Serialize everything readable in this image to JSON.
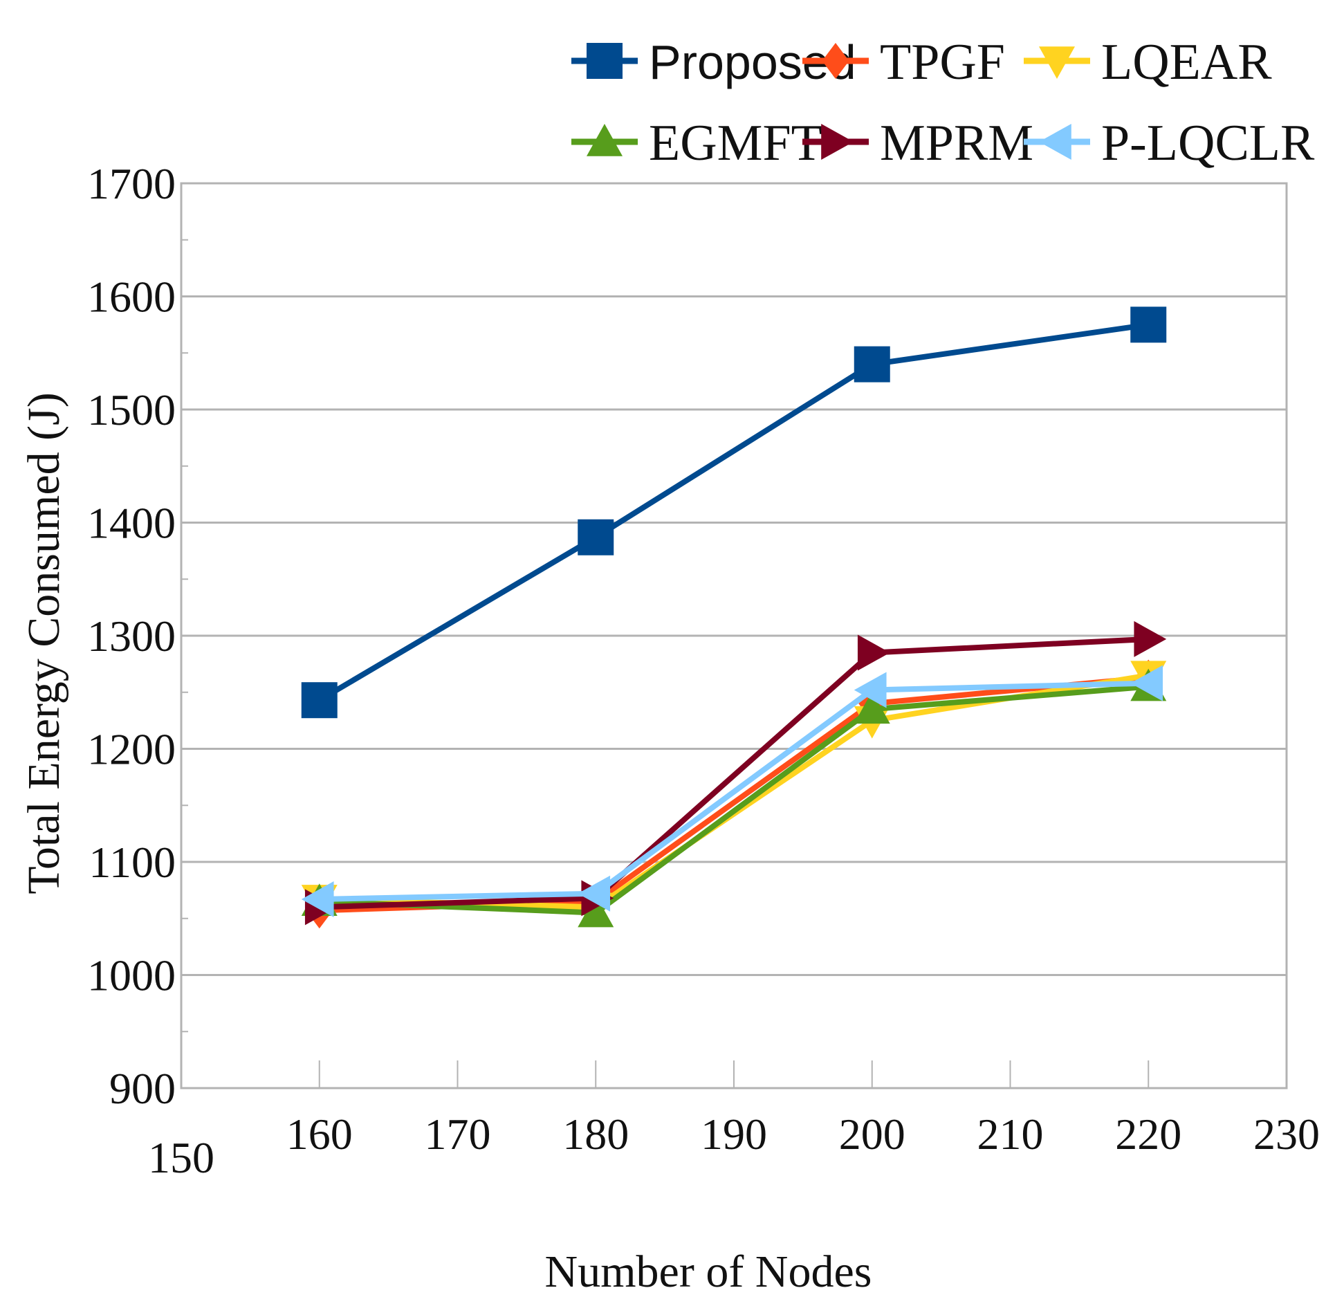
{
  "chart_data": {
    "type": "line",
    "title": "",
    "xlabel": "Number of Nodes",
    "ylabel": "Total Energy Consumed (J)",
    "xlim": [
      150,
      230
    ],
    "ylim": [
      900,
      1700
    ],
    "xticks": [
      150,
      160,
      170,
      180,
      190,
      200,
      210,
      220,
      230
    ],
    "yticks": [
      900,
      1000,
      1100,
      1200,
      1300,
      1400,
      1500,
      1600,
      1700
    ],
    "x": [
      160,
      180,
      200,
      220
    ],
    "grid": "horizontal",
    "legend_position": "top",
    "series": [
      {
        "name": "Proposed",
        "values": [
          1243,
          1387,
          1540,
          1575
        ],
        "color": "#004a8f",
        "marker": "square"
      },
      {
        "name": "TPGF",
        "values": [
          1057,
          1065,
          1240,
          1263
        ],
        "color": "#ff4d1a",
        "marker": "diamond"
      },
      {
        "name": "LQEAR",
        "values": [
          1067,
          1060,
          1225,
          1265
        ],
        "color": "#ffd320",
        "marker": "triangle-down"
      },
      {
        "name": "EGMFT",
        "values": [
          1065,
          1055,
          1235,
          1255
        ],
        "color": "#579d1c",
        "marker": "triangle-up"
      },
      {
        "name": "MPRM",
        "values": [
          1060,
          1068,
          1285,
          1297
        ],
        "color": "#7e0021",
        "marker": "triangle-right"
      },
      {
        "name": "P-LQCLR",
        "values": [
          1067,
          1072,
          1252,
          1258
        ],
        "color": "#83caff",
        "marker": "triangle-left"
      }
    ]
  }
}
